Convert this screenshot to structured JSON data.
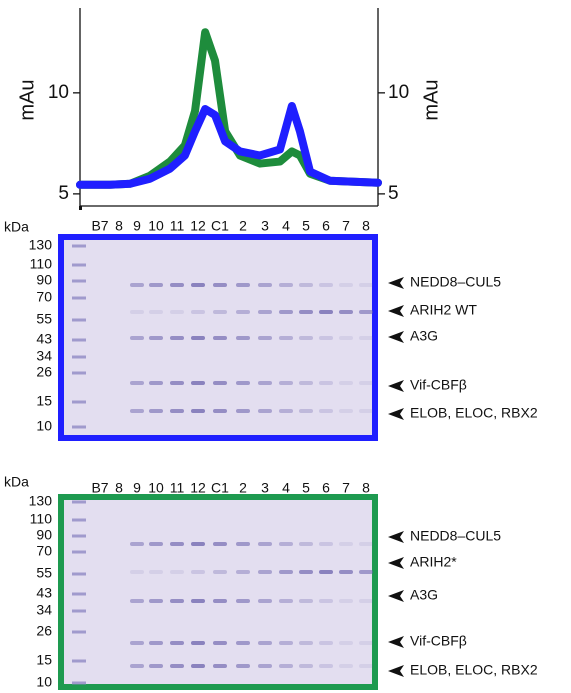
{
  "chart_data": {
    "type": "line",
    "y_label": "mAu",
    "y2_label": "mAu",
    "x": [
      0,
      10.1,
      16.8,
      23.5,
      30.2,
      35.2,
      38.6,
      42,
      45.3,
      48.7,
      53.7,
      60.4,
      67.1,
      71.1,
      73.8,
      77.2,
      83.9,
      100
    ],
    "xlim": [
      0,
      100
    ],
    "ylim": [
      4.4,
      14.1
    ],
    "yticks": [
      5,
      10
    ],
    "y2lim": [
      4.4,
      14.1
    ],
    "y2ticks": [
      5,
      10
    ],
    "series": [
      {
        "color": "#1e8c3c",
        "values": [
          5.45,
          5.45,
          5.5,
          5.9,
          6.6,
          7.4,
          9.1,
          13.0,
          11.6,
          8.1,
          6.9,
          6.5,
          6.6,
          7.1,
          6.9,
          6.0,
          5.65,
          5.55
        ]
      },
      {
        "color": "#1f1fff",
        "values": [
          5.45,
          5.45,
          5.5,
          5.75,
          6.25,
          6.9,
          8.1,
          9.2,
          8.9,
          7.6,
          7.1,
          6.9,
          7.2,
          9.35,
          8.1,
          6.1,
          5.65,
          5.55
        ]
      }
    ]
  },
  "gels": [
    {
      "unit": "kDa",
      "border_color": "#1f1fff",
      "lanes": [
        "B7",
        "8",
        "9",
        "10",
        "11",
        "12",
        "C1",
        "2",
        "3",
        "4",
        "5",
        "6",
        "7",
        "8"
      ],
      "markers": [
        130,
        110,
        90,
        70,
        55,
        43,
        34,
        26,
        15,
        10
      ],
      "bands": [
        "NEDD8–CUL5",
        "ARIH2 WT",
        "A3G",
        "Vif-CBFβ",
        "ELOB, ELOC, RBX2"
      ]
    },
    {
      "unit": "kDa",
      "border_color": "#1e9a50",
      "lanes": [
        "B7",
        "8",
        "9",
        "10",
        "11",
        "12",
        "C1",
        "2",
        "3",
        "4",
        "5",
        "6",
        "7",
        "8"
      ],
      "markers": [
        130,
        110,
        90,
        70,
        55,
        43,
        34,
        26,
        15,
        10
      ],
      "bands": [
        "NEDD8–CUL5",
        "ARIH2*",
        "A3G",
        "Vif-CBFβ",
        "ELOB, ELOC, RBX2"
      ]
    }
  ]
}
